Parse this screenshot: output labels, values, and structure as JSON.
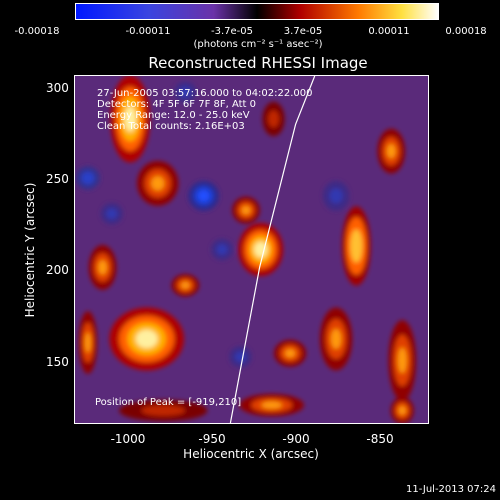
{
  "colorbar": {
    "ticks": [
      "-0.00018",
      "-0.00011",
      "-3.7e-05",
      "3.7e-05",
      "0.00011",
      "0.00018"
    ],
    "units": "(photons cm⁻² s⁻¹ asec⁻²)"
  },
  "annotations": {
    "time_range": "27-Jun-2005 03:57:16.000 to 04:02:22.000",
    "detectors": "Detectors: 4F 5F 6F 7F 8F, Att 0",
    "energy": "Energy Range: 12.0 - 25.0 keV",
    "clean": "Clean     Total counts: 2.16E+03",
    "peak": "Position of Peak = [-919,210]"
  },
  "timestamp": "11-Jul-2013 07:24",
  "chart_data": {
    "type": "heatmap",
    "title": "Reconstructed RHESSI Image",
    "xlabel": "Heliocentric X (arcsec)",
    "ylabel": "Heliocentric Y (arcsec)",
    "xlim": [
      -1020,
      -828
    ],
    "ylim": [
      113,
      307
    ],
    "xticks": [
      -1000,
      -950,
      -900,
      -850
    ],
    "yticks": [
      150,
      200,
      250,
      300
    ],
    "xtick_labels": [
      "-1000",
      "-950",
      "-900",
      "-850"
    ],
    "ytick_labels": [
      "150",
      "200",
      "250",
      "300"
    ],
    "color_range": [
      -0.00018,
      0.00018
    ],
    "peak_position": [
      -919,
      210
    ],
    "limb": {
      "x": [
        -935.5,
        -919.6,
        -900,
        -889.6
      ],
      "y": [
        113,
        200,
        280,
        307
      ]
    },
    "sources": [
      {
        "x": -990,
        "y": 283,
        "sx": 8,
        "sy": 18,
        "v": 1.0
      },
      {
        "x": -975,
        "y": 247,
        "sx": 9,
        "sy": 10,
        "v": 0.5
      },
      {
        "x": -919,
        "y": 210,
        "sx": 9,
        "sy": 11,
        "v": 1.0
      },
      {
        "x": -927,
        "y": 232,
        "sx": 6,
        "sy": 6,
        "v": 0.6
      },
      {
        "x": -981,
        "y": 160,
        "sx": 15,
        "sy": 13,
        "v": 1.0
      },
      {
        "x": -960,
        "y": 190,
        "sx": 6,
        "sy": 5,
        "v": 0.5
      },
      {
        "x": -1005,
        "y": 200,
        "sx": 6,
        "sy": 10,
        "v": 0.5
      },
      {
        "x": -1013,
        "y": 158,
        "sx": 4,
        "sy": 14,
        "v": 0.5
      },
      {
        "x": -867,
        "y": 212,
        "sx": 6,
        "sy": 17,
        "v": 0.85
      },
      {
        "x": -878,
        "y": 160,
        "sx": 7,
        "sy": 14,
        "v": 0.6
      },
      {
        "x": -903,
        "y": 152,
        "sx": 7,
        "sy": 6,
        "v": 0.45
      },
      {
        "x": -842,
        "y": 148,
        "sx": 6,
        "sy": 18,
        "v": 0.6
      },
      {
        "x": -848,
        "y": 265,
        "sx": 6,
        "sy": 10,
        "v": 0.55
      },
      {
        "x": -912,
        "y": 283,
        "sx": 5,
        "sy": 8,
        "v": 0.4
      },
      {
        "x": -913,
        "y": 123,
        "sx": 14,
        "sy": 5,
        "v": 0.5
      },
      {
        "x": -842,
        "y": 120,
        "sx": 5,
        "sy": 6,
        "v": 0.5
      },
      {
        "x": -972,
        "y": 120,
        "sx": 20,
        "sy": 5,
        "v": 0.35
      },
      {
        "x": -1013,
        "y": 250,
        "sx": 5,
        "sy": 5,
        "v": -0.7
      },
      {
        "x": -950,
        "y": 240,
        "sx": 6,
        "sy": 6,
        "v": -0.9
      },
      {
        "x": -940,
        "y": 210,
        "sx": 5,
        "sy": 5,
        "v": -0.5
      },
      {
        "x": -878,
        "y": 240,
        "sx": 6,
        "sy": 7,
        "v": -0.5
      },
      {
        "x": -960,
        "y": 298,
        "sx": 5,
        "sy": 5,
        "v": -0.5
      },
      {
        "x": -1000,
        "y": 230,
        "sx": 5,
        "sy": 5,
        "v": -0.4
      },
      {
        "x": -930,
        "y": 150,
        "sx": 5,
        "sy": 5,
        "v": -0.4
      }
    ]
  }
}
